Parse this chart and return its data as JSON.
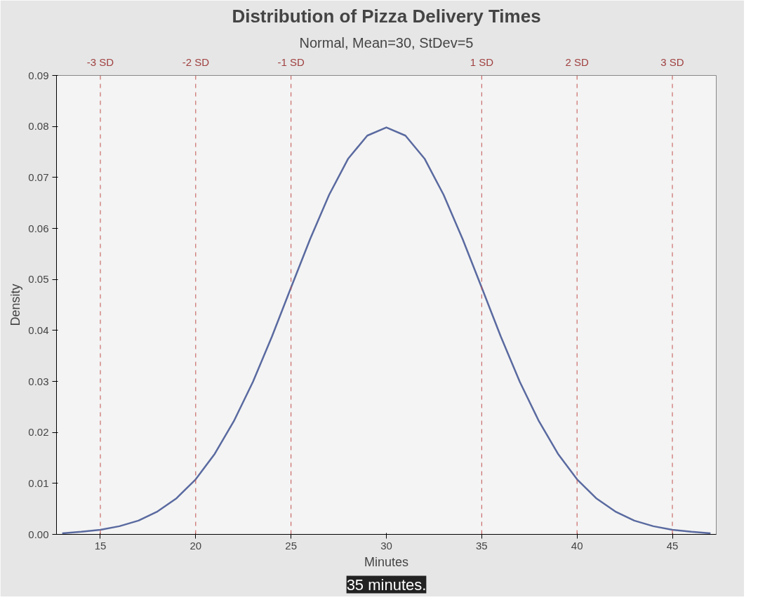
{
  "chart_data": {
    "type": "line",
    "title": "Distribution of Pizza Delivery Times",
    "subtitle": "Normal, Mean=30, StDev=5",
    "xlabel": "Minutes",
    "ylabel": "Density",
    "x": [
      13,
      14,
      15,
      16,
      17,
      18,
      19,
      20,
      21,
      22,
      23,
      24,
      25,
      26,
      27,
      28,
      29,
      30,
      31,
      32,
      33,
      34,
      35,
      36,
      37,
      38,
      39,
      40,
      41,
      42,
      43,
      44,
      45,
      46,
      47
    ],
    "series": [
      {
        "color": "#5a6aa0",
        "values": [
          0.0002,
          0.0005,
          0.0009,
          0.0016,
          0.0027,
          0.0045,
          0.0071,
          0.0108,
          0.0158,
          0.0222,
          0.0299,
          0.0388,
          0.0484,
          0.0579,
          0.0666,
          0.0737,
          0.0782,
          0.0798,
          0.0782,
          0.0737,
          0.0666,
          0.0579,
          0.0484,
          0.0388,
          0.0299,
          0.0222,
          0.0158,
          0.0108,
          0.0071,
          0.0045,
          0.0027,
          0.0016,
          0.0009,
          0.0005,
          0.0002
        ]
      }
    ],
    "xlim": [
      12.7,
      47.3
    ],
    "ylim": [
      0,
      0.09
    ],
    "xticks": [
      15,
      20,
      25,
      30,
      35,
      40,
      45
    ],
    "yticks": [
      {
        "value": 0,
        "label": "0.00"
      },
      {
        "value": 0.01,
        "label": "0.01"
      },
      {
        "value": 0.02,
        "label": "0.02"
      },
      {
        "value": 0.03,
        "label": "0.03"
      },
      {
        "value": 0.04,
        "label": "0.04"
      },
      {
        "value": 0.05,
        "label": "0.05"
      },
      {
        "value": 0.06,
        "label": "0.06"
      },
      {
        "value": 0.07,
        "label": "0.07"
      },
      {
        "value": 0.08,
        "label": "0.08"
      },
      {
        "value": 0.09,
        "label": "0.09"
      }
    ],
    "ref_lines": [
      {
        "axis": "x",
        "value": 15,
        "label": "-3 SD",
        "color": "#c0504d",
        "line_style": "dashed"
      },
      {
        "axis": "x",
        "value": 20,
        "label": "-2 SD",
        "color": "#c0504d",
        "line_style": "dashed"
      },
      {
        "axis": "x",
        "value": 25,
        "label": "-1 SD",
        "color": "#c0504d",
        "line_style": "dashed"
      },
      {
        "axis": "x",
        "value": 35,
        "label": "1 SD",
        "color": "#c0504d",
        "line_style": "dashed"
      },
      {
        "axis": "x",
        "value": 40,
        "label": "2 SD",
        "color": "#c0504d",
        "line_style": "dashed"
      },
      {
        "axis": "x",
        "value": 45,
        "label": "3 SD",
        "color": "#c0504d",
        "line_style": "dashed"
      }
    ],
    "annotations": [
      "35 minutes."
    ],
    "grid": false,
    "marker": "none",
    "line_style": "solid"
  }
}
